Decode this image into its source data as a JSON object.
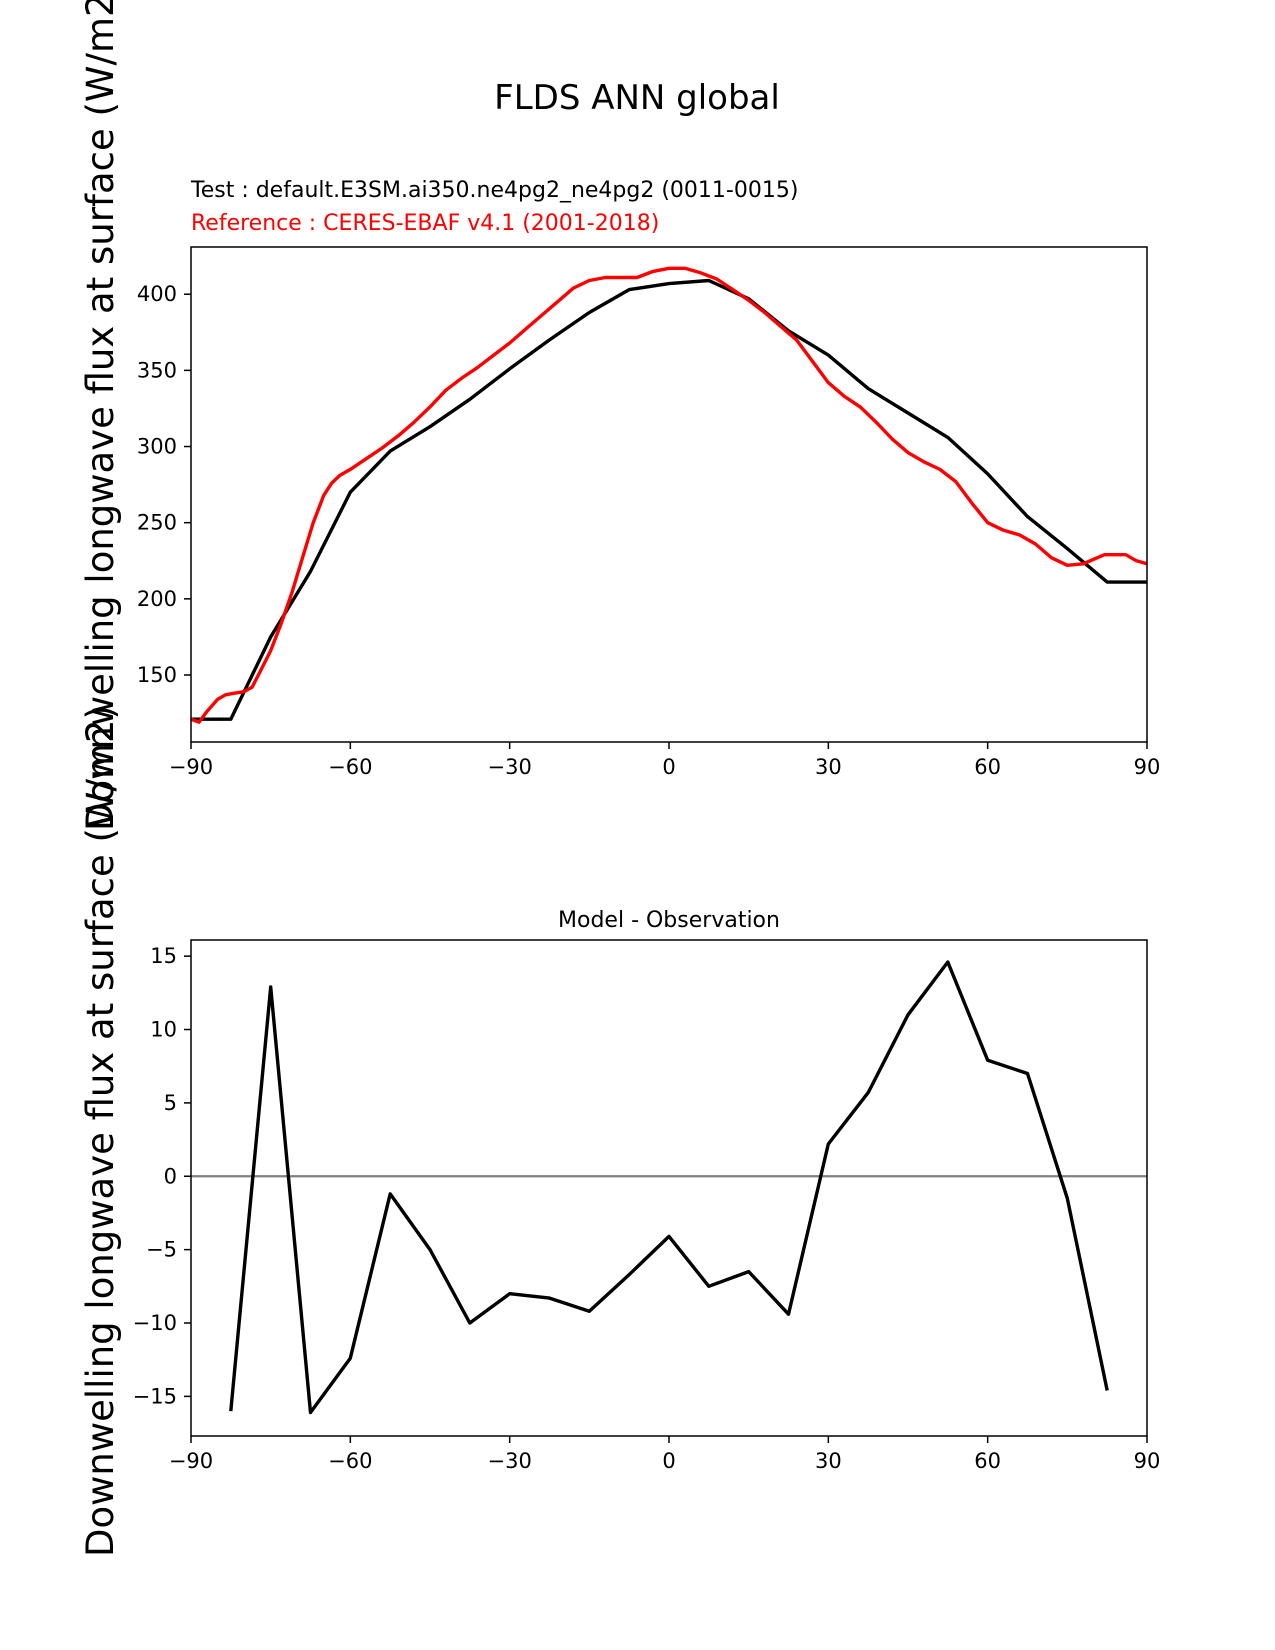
{
  "figure": {
    "title": "FLDS ANN global",
    "ylabel": "Downwelling longwave flux at surface (W/m2)",
    "colors": {
      "test": "#000000",
      "reference": "#ff0000",
      "zero_line": "#808080"
    }
  },
  "chart_data": [
    {
      "type": "line",
      "test_label": "Test : default.E3SM.ai350.ne4pg2_ne4pg2 (0011-0015)",
      "reference_label": "Reference : CERES-EBAF v4.1 (2001-2018)",
      "xlim": [
        -90,
        90
      ],
      "ylim": [
        106,
        431
      ],
      "xticks": [
        "−90",
        "−60",
        "−30",
        "0",
        "30",
        "60",
        "90"
      ],
      "xtick_values": [
        -90,
        -60,
        -30,
        0,
        30,
        60,
        90
      ],
      "yticks": [
        "150",
        "200",
        "250",
        "300",
        "350",
        "400"
      ],
      "ytick_values": [
        150,
        200,
        250,
        300,
        350,
        400
      ],
      "series": [
        {
          "color": "#000000",
          "x": [
            -90,
            -82.5,
            -75,
            -67.5,
            -60,
            -52.5,
            -45,
            -37.5,
            -30,
            -22.5,
            -15,
            -7.5,
            0,
            7.5,
            15,
            22.5,
            30,
            37.5,
            45,
            52.5,
            60,
            67.5,
            75,
            82.5,
            90
          ],
          "y": [
            121,
            121,
            175,
            218,
            270,
            297,
            313,
            331,
            351,
            370,
            388,
            403,
            407,
            409,
            397,
            376,
            360,
            338,
            322,
            306,
            282,
            254,
            233,
            211,
            211
          ]
        },
        {
          "color": "#ff0000",
          "x": [
            -90,
            -88.5,
            -87,
            -85,
            -83.5,
            -82,
            -80,
            -78.5,
            -77,
            -75,
            -73,
            -71,
            -69,
            -67,
            -65,
            -63.5,
            -62,
            -60,
            -57,
            -54,
            -51,
            -48,
            -45,
            -42,
            -39,
            -36,
            -33,
            -30,
            -27,
            -24,
            -21,
            -18,
            -15,
            -12,
            -9,
            -6,
            -3,
            0,
            3,
            6,
            9,
            12,
            15,
            18,
            21,
            24,
            27,
            30,
            33,
            36,
            39,
            42,
            45,
            48,
            51,
            54,
            57,
            60,
            63,
            66,
            69,
            72,
            75,
            78,
            80,
            82,
            84,
            86,
            88,
            90
          ],
          "y": [
            121,
            119,
            126,
            134,
            137,
            138,
            139,
            142,
            152,
            166,
            184,
            204,
            227,
            250,
            268,
            276,
            281,
            285,
            292,
            299,
            307,
            316,
            326,
            337,
            345,
            352,
            360,
            368,
            377,
            386,
            395,
            404,
            409,
            411,
            411,
            411,
            415,
            417,
            417,
            414,
            410,
            403,
            396,
            388,
            379,
            370,
            356,
            342,
            333,
            326,
            316,
            305,
            296,
            290,
            285,
            277,
            263,
            250,
            245,
            242,
            236,
            227,
            222,
            223,
            226,
            229,
            229,
            229,
            225,
            223
          ]
        }
      ]
    },
    {
      "type": "line",
      "title": "Model - Observation",
      "xlim": [
        -90,
        90
      ],
      "ylim": [
        -17.7,
        16.1
      ],
      "xticks": [
        "−90",
        "−60",
        "−30",
        "0",
        "30",
        "60",
        "90"
      ],
      "xtick_values": [
        -90,
        -60,
        -30,
        0,
        30,
        60,
        90
      ],
      "yticks": [
        "−15",
        "−10",
        "−5",
        "0",
        "5",
        "10",
        "15"
      ],
      "ytick_values": [
        -15,
        -10,
        -5,
        0,
        5,
        10,
        15
      ],
      "zero_line": 0,
      "series": [
        {
          "color": "#000000",
          "x": [
            -82.5,
            -75,
            -67.5,
            -60,
            -52.5,
            -45,
            -37.5,
            -30,
            -22.5,
            -15,
            -7.5,
            0,
            7.5,
            15,
            22.5,
            30,
            37.5,
            45,
            52.5,
            60,
            67.5,
            75,
            82.5
          ],
          "y": [
            -16.0,
            12.9,
            -16.1,
            -12.4,
            -1.2,
            -5.0,
            -10.0,
            -8.0,
            -8.3,
            -9.2,
            -6.7,
            -4.1,
            -7.5,
            -6.5,
            -9.4,
            2.2,
            5.7,
            11.0,
            14.6,
            7.9,
            7.0,
            -1.5,
            -14.6
          ]
        }
      ]
    }
  ]
}
